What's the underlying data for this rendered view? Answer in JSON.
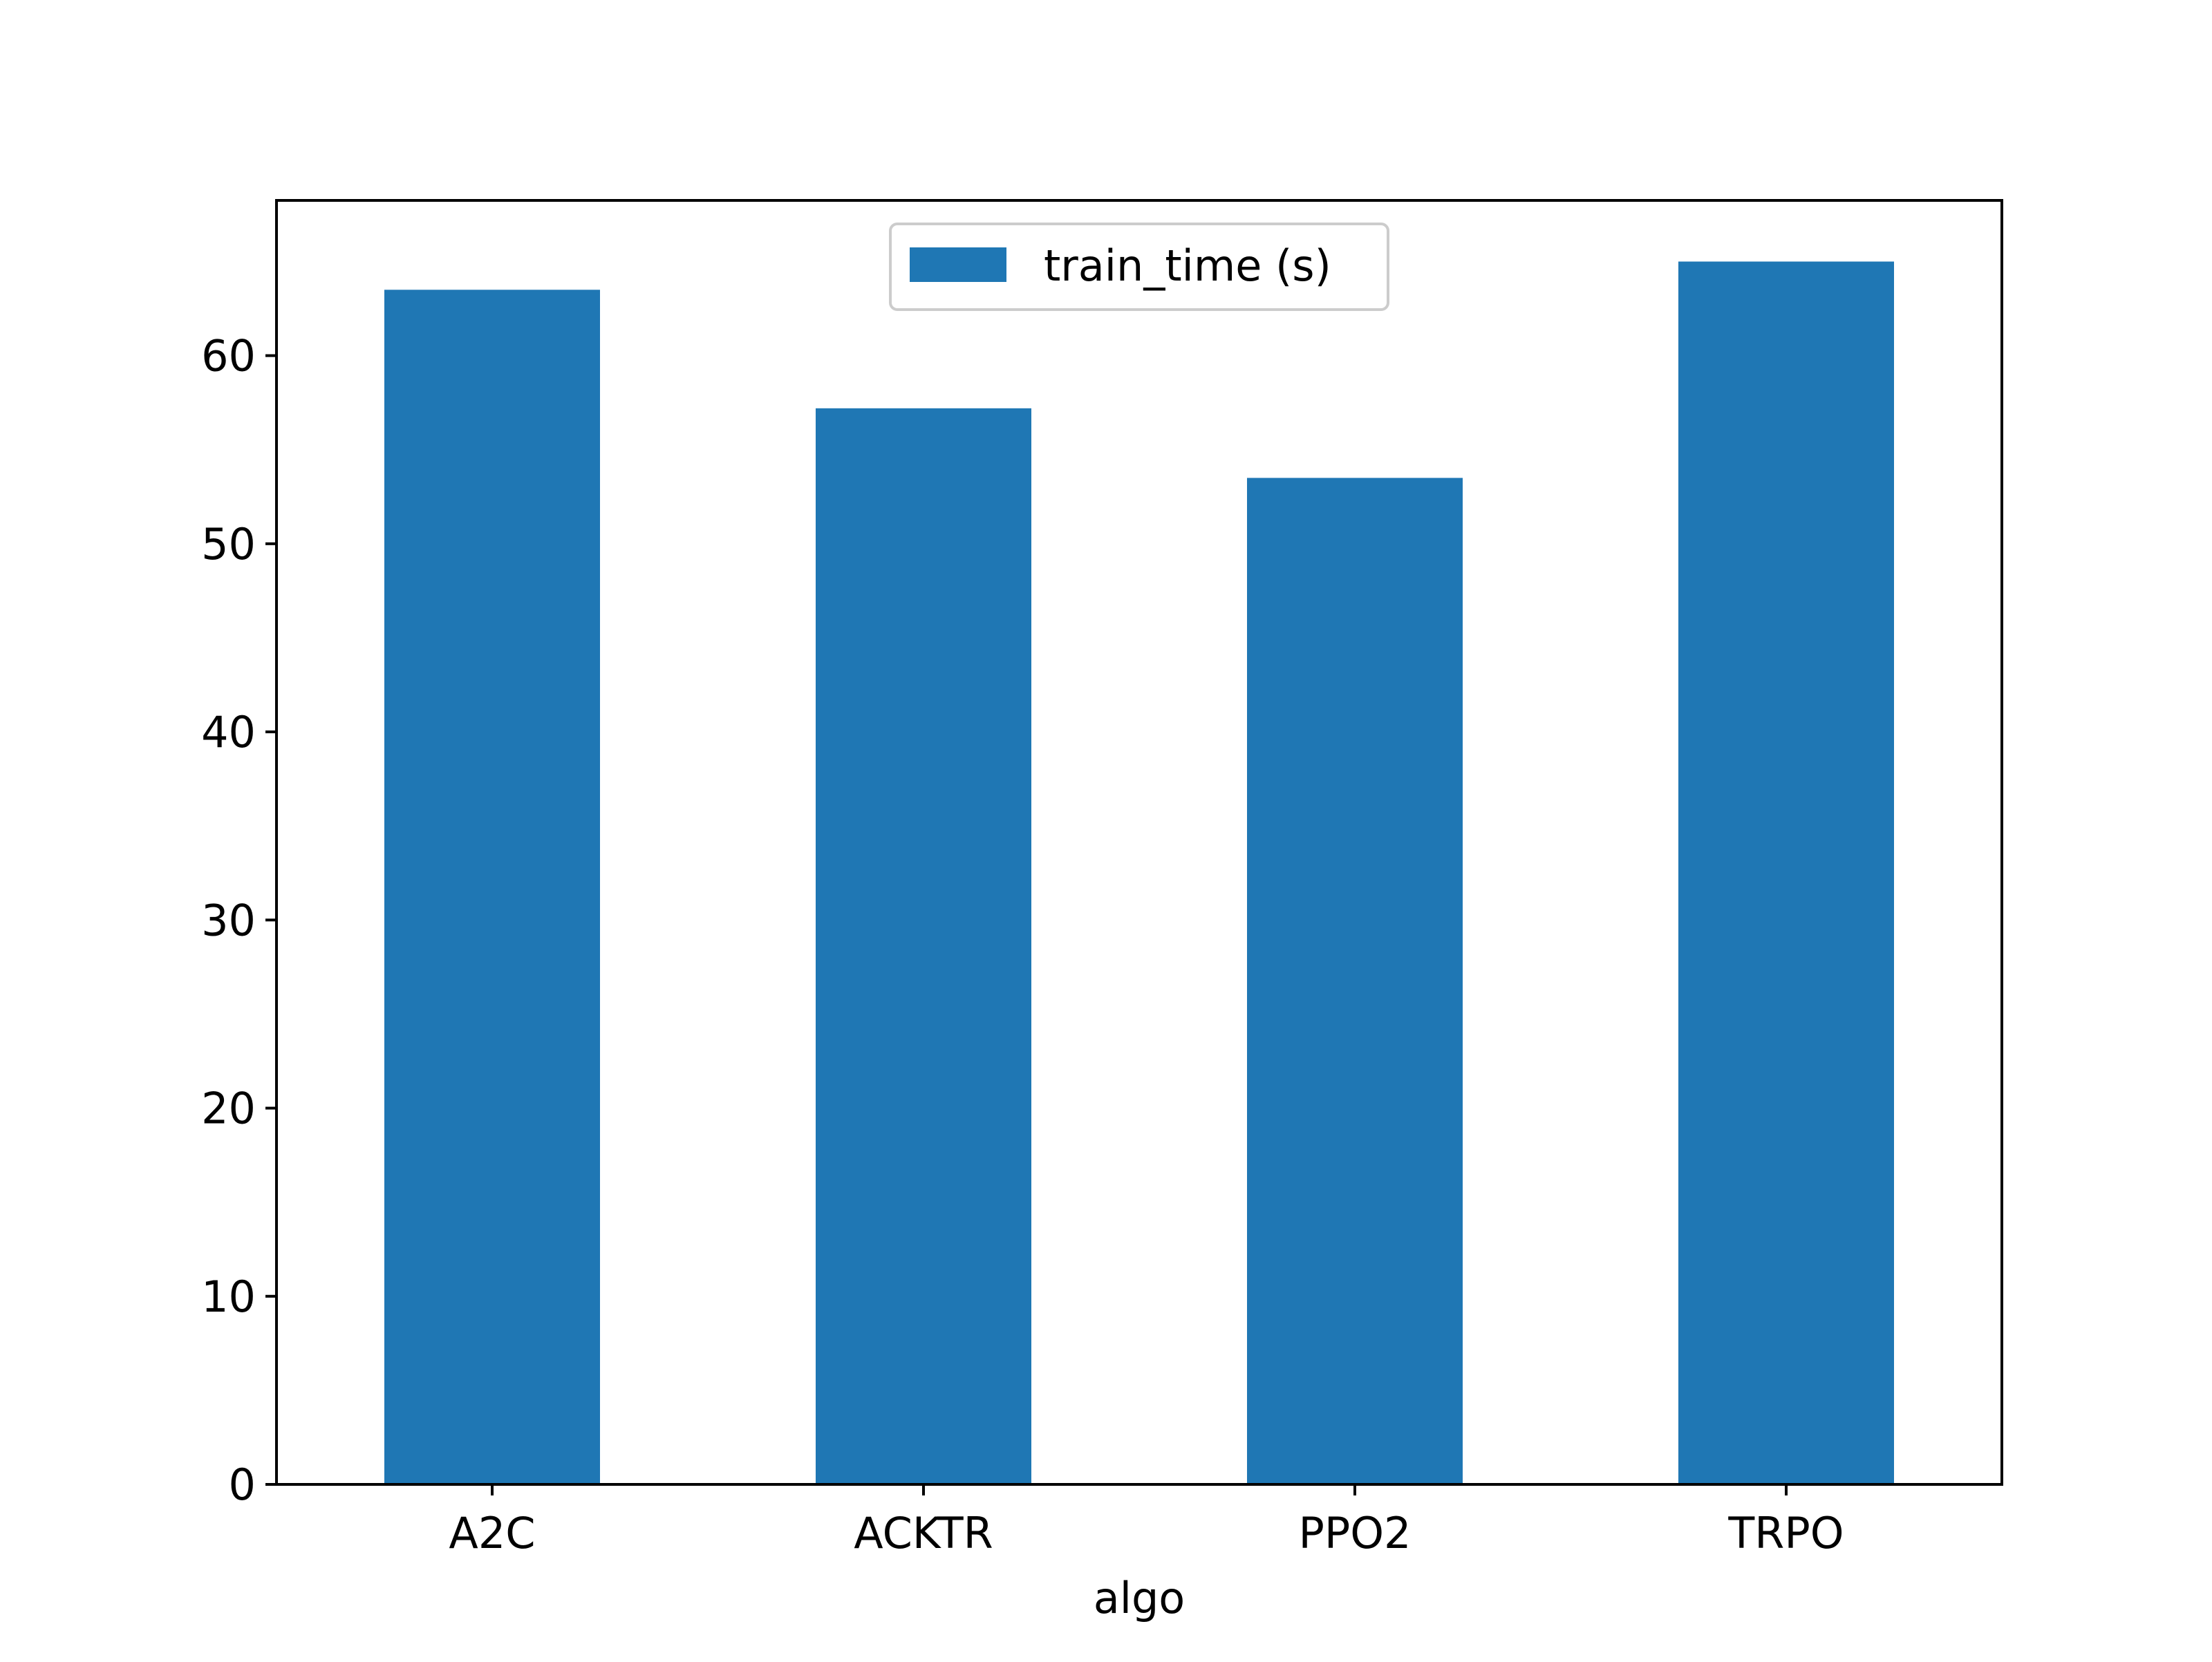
{
  "chart_data": {
    "type": "bar",
    "categories": [
      "A2C",
      "ACKTR",
      "PPO2",
      "TRPO"
    ],
    "series": [
      {
        "name": "train_time (s)",
        "values": [
          63.5,
          57.2,
          53.5,
          65.0
        ],
        "color": "#1f77b4"
      }
    ],
    "title": "",
    "xlabel": "algo",
    "ylabel": "",
    "ylim": [
      0,
      68.25
    ],
    "yticks": [
      0,
      10,
      20,
      30,
      40,
      50,
      60
    ],
    "ytick_labels": [
      "0",
      "10",
      "20",
      "30",
      "40",
      "50",
      "60"
    ],
    "grid": false,
    "legend_position": "upper-center"
  }
}
